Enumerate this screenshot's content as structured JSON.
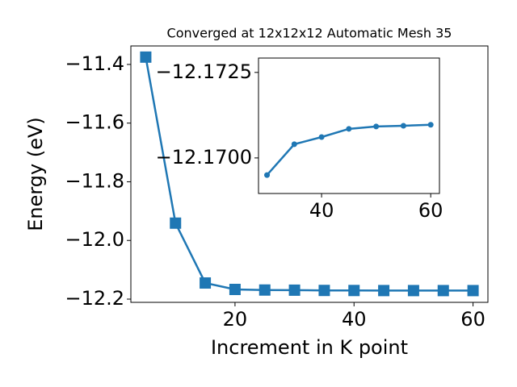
{
  "chart_data": [
    {
      "type": "line",
      "title": "Converged at 12x12x12 Automatic Mesh 35",
      "x_label": "Increment in K point",
      "y_label": "Energy (eV)",
      "x": [
        5,
        10,
        15,
        20,
        25,
        30,
        35,
        40,
        45,
        50,
        55,
        60
      ],
      "series": [
        {
          "color": "#1f77b4",
          "marker": "square",
          "values": [
            -11.375,
            -11.941,
            -12.145,
            -12.167,
            -12.169,
            -12.1695,
            -12.1704,
            -12.17061,
            -12.17085,
            -12.17092,
            -12.17094,
            -12.17097
          ]
        }
      ],
      "xlim": [
        2.5,
        62.5
      ],
      "ylim": [
        -12.211,
        -11.337
      ],
      "xticks": [
        20,
        40,
        60
      ],
      "yticks": [
        {
          "value": -11.4,
          "label": "−11.4"
        },
        {
          "value": -11.6,
          "label": "−11.6"
        },
        {
          "value": -11.8,
          "label": "−11.8"
        },
        {
          "value": -12.0,
          "label": "−12.0"
        },
        {
          "value": -12.2,
          "label": "−12.2"
        }
      ]
    },
    {
      "type": "line",
      "x": [
        30,
        35,
        40,
        45,
        50,
        55,
        60
      ],
      "series": [
        {
          "color": "#1f77b4",
          "marker": "circle",
          "values": [
            -12.1695,
            -12.1704,
            -12.17061,
            -12.17085,
            -12.17092,
            -12.17094,
            -12.17097
          ]
        }
      ],
      "xlim": [
        28.44,
        61.6
      ],
      "ylim": [
        -12.16896,
        -12.17292
      ],
      "xticks": [
        40,
        60
      ],
      "yticks": [
        {
          "value": -12.1725,
          "label": "−12.1725"
        },
        {
          "value": -12.17,
          "label": "−12.1700"
        }
      ]
    }
  ]
}
